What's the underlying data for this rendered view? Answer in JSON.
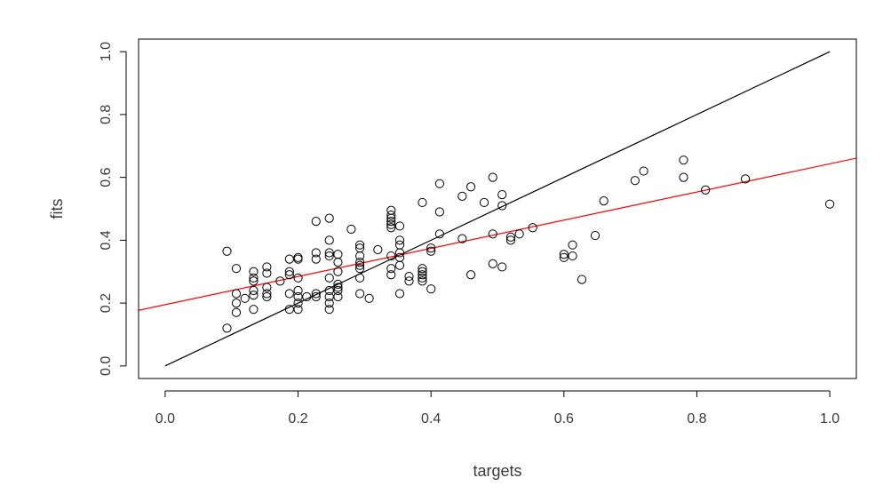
{
  "chart_data": {
    "type": "scatter",
    "title": "",
    "xlabel": "targets",
    "ylabel": "fits",
    "xlim": [
      -0.04,
      1.04
    ],
    "ylim": [
      -0.04,
      1.04
    ],
    "x_ticks": [
      "0.0",
      "0.2",
      "0.4",
      "0.6",
      "0.8",
      "1.0"
    ],
    "y_ticks": [
      "0.0",
      "0.2",
      "0.4",
      "0.6",
      "0.8",
      "1.0"
    ],
    "grid": false,
    "legend": "none",
    "colors": {
      "points": "#000000",
      "identity_line": "#000000",
      "regression_line": "#ff0000",
      "frame": "#000000",
      "text": "#3a3a3a"
    },
    "points": [
      {
        "x": 0.093,
        "y": 0.12
      },
      {
        "x": 0.093,
        "y": 0.365
      },
      {
        "x": 0.107,
        "y": 0.31
      },
      {
        "x": 0.107,
        "y": 0.23
      },
      {
        "x": 0.107,
        "y": 0.2
      },
      {
        "x": 0.107,
        "y": 0.17
      },
      {
        "x": 0.12,
        "y": 0.215
      },
      {
        "x": 0.133,
        "y": 0.3
      },
      {
        "x": 0.133,
        "y": 0.28
      },
      {
        "x": 0.133,
        "y": 0.27
      },
      {
        "x": 0.133,
        "y": 0.24
      },
      {
        "x": 0.133,
        "y": 0.225
      },
      {
        "x": 0.133,
        "y": 0.18
      },
      {
        "x": 0.153,
        "y": 0.315
      },
      {
        "x": 0.153,
        "y": 0.295
      },
      {
        "x": 0.153,
        "y": 0.25
      },
      {
        "x": 0.153,
        "y": 0.23
      },
      {
        "x": 0.153,
        "y": 0.22
      },
      {
        "x": 0.173,
        "y": 0.27
      },
      {
        "x": 0.187,
        "y": 0.34
      },
      {
        "x": 0.187,
        "y": 0.3
      },
      {
        "x": 0.187,
        "y": 0.29
      },
      {
        "x": 0.187,
        "y": 0.23
      },
      {
        "x": 0.187,
        "y": 0.18
      },
      {
        "x": 0.2,
        "y": 0.345
      },
      {
        "x": 0.2,
        "y": 0.34
      },
      {
        "x": 0.2,
        "y": 0.28
      },
      {
        "x": 0.2,
        "y": 0.24
      },
      {
        "x": 0.2,
        "y": 0.22
      },
      {
        "x": 0.2,
        "y": 0.2
      },
      {
        "x": 0.2,
        "y": 0.18
      },
      {
        "x": 0.213,
        "y": 0.22
      },
      {
        "x": 0.227,
        "y": 0.46
      },
      {
        "x": 0.227,
        "y": 0.36
      },
      {
        "x": 0.227,
        "y": 0.34
      },
      {
        "x": 0.227,
        "y": 0.23
      },
      {
        "x": 0.227,
        "y": 0.22
      },
      {
        "x": 0.247,
        "y": 0.47
      },
      {
        "x": 0.247,
        "y": 0.4
      },
      {
        "x": 0.247,
        "y": 0.36
      },
      {
        "x": 0.247,
        "y": 0.35
      },
      {
        "x": 0.247,
        "y": 0.28
      },
      {
        "x": 0.247,
        "y": 0.24
      },
      {
        "x": 0.247,
        "y": 0.22
      },
      {
        "x": 0.247,
        "y": 0.2
      },
      {
        "x": 0.247,
        "y": 0.18
      },
      {
        "x": 0.26,
        "y": 0.355
      },
      {
        "x": 0.26,
        "y": 0.33
      },
      {
        "x": 0.26,
        "y": 0.3
      },
      {
        "x": 0.26,
        "y": 0.26
      },
      {
        "x": 0.26,
        "y": 0.25
      },
      {
        "x": 0.26,
        "y": 0.24
      },
      {
        "x": 0.26,
        "y": 0.22
      },
      {
        "x": 0.28,
        "y": 0.435
      },
      {
        "x": 0.293,
        "y": 0.385
      },
      {
        "x": 0.293,
        "y": 0.375
      },
      {
        "x": 0.293,
        "y": 0.35
      },
      {
        "x": 0.293,
        "y": 0.33
      },
      {
        "x": 0.293,
        "y": 0.32
      },
      {
        "x": 0.293,
        "y": 0.31
      },
      {
        "x": 0.293,
        "y": 0.28
      },
      {
        "x": 0.293,
        "y": 0.23
      },
      {
        "x": 0.307,
        "y": 0.215
      },
      {
        "x": 0.32,
        "y": 0.37
      },
      {
        "x": 0.34,
        "y": 0.495
      },
      {
        "x": 0.34,
        "y": 0.48
      },
      {
        "x": 0.34,
        "y": 0.47
      },
      {
        "x": 0.34,
        "y": 0.46
      },
      {
        "x": 0.34,
        "y": 0.45
      },
      {
        "x": 0.34,
        "y": 0.44
      },
      {
        "x": 0.34,
        "y": 0.35
      },
      {
        "x": 0.34,
        "y": 0.31
      },
      {
        "x": 0.34,
        "y": 0.29
      },
      {
        "x": 0.353,
        "y": 0.445
      },
      {
        "x": 0.353,
        "y": 0.4
      },
      {
        "x": 0.353,
        "y": 0.385
      },
      {
        "x": 0.353,
        "y": 0.36
      },
      {
        "x": 0.353,
        "y": 0.345
      },
      {
        "x": 0.353,
        "y": 0.32
      },
      {
        "x": 0.353,
        "y": 0.23
      },
      {
        "x": 0.367,
        "y": 0.285
      },
      {
        "x": 0.367,
        "y": 0.27
      },
      {
        "x": 0.387,
        "y": 0.52
      },
      {
        "x": 0.387,
        "y": 0.31
      },
      {
        "x": 0.387,
        "y": 0.3
      },
      {
        "x": 0.387,
        "y": 0.29
      },
      {
        "x": 0.387,
        "y": 0.28
      },
      {
        "x": 0.387,
        "y": 0.27
      },
      {
        "x": 0.4,
        "y": 0.375
      },
      {
        "x": 0.4,
        "y": 0.365
      },
      {
        "x": 0.4,
        "y": 0.245
      },
      {
        "x": 0.413,
        "y": 0.58
      },
      {
        "x": 0.413,
        "y": 0.49
      },
      {
        "x": 0.413,
        "y": 0.42
      },
      {
        "x": 0.447,
        "y": 0.54
      },
      {
        "x": 0.447,
        "y": 0.405
      },
      {
        "x": 0.46,
        "y": 0.57
      },
      {
        "x": 0.46,
        "y": 0.29
      },
      {
        "x": 0.48,
        "y": 0.52
      },
      {
        "x": 0.493,
        "y": 0.6
      },
      {
        "x": 0.493,
        "y": 0.42
      },
      {
        "x": 0.493,
        "y": 0.325
      },
      {
        "x": 0.507,
        "y": 0.545
      },
      {
        "x": 0.507,
        "y": 0.51
      },
      {
        "x": 0.507,
        "y": 0.315
      },
      {
        "x": 0.52,
        "y": 0.41
      },
      {
        "x": 0.52,
        "y": 0.4
      },
      {
        "x": 0.533,
        "y": 0.42
      },
      {
        "x": 0.553,
        "y": 0.44
      },
      {
        "x": 0.6,
        "y": 0.355
      },
      {
        "x": 0.6,
        "y": 0.345
      },
      {
        "x": 0.613,
        "y": 0.385
      },
      {
        "x": 0.613,
        "y": 0.35
      },
      {
        "x": 0.627,
        "y": 0.275
      },
      {
        "x": 0.647,
        "y": 0.415
      },
      {
        "x": 0.66,
        "y": 0.525
      },
      {
        "x": 0.707,
        "y": 0.59
      },
      {
        "x": 0.72,
        "y": 0.62
      },
      {
        "x": 0.78,
        "y": 0.655
      },
      {
        "x": 0.78,
        "y": 0.6
      },
      {
        "x": 0.813,
        "y": 0.56
      },
      {
        "x": 0.873,
        "y": 0.595
      },
      {
        "x": 1.0,
        "y": 0.515
      }
    ],
    "lines": [
      {
        "role": "identity",
        "color": "#000000",
        "x": [
          0.0,
          1.0
        ],
        "y": [
          0.0,
          1.0
        ]
      },
      {
        "role": "regression",
        "color": "#ff0000",
        "x": [
          -0.04,
          1.04
        ],
        "y": [
          0.177,
          0.661
        ]
      }
    ]
  }
}
